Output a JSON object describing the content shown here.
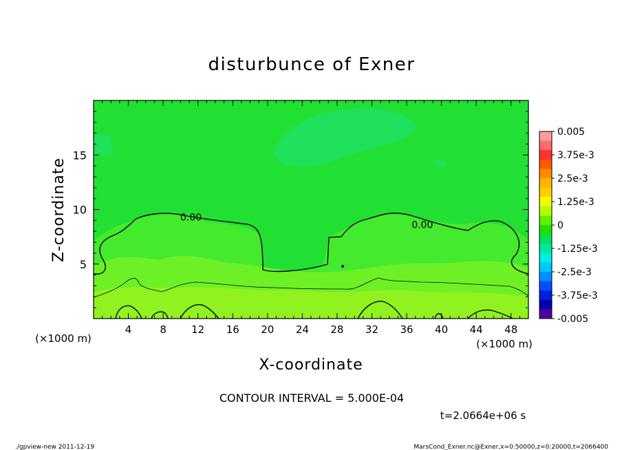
{
  "chart_data": {
    "type": "heatmap",
    "title": "disturbunce of Exner",
    "xlabel": "X-coordinate",
    "ylabel": "Z-coordinate",
    "x_unit": "(×1000 m)",
    "y_unit": "(×1000 m)",
    "xlim": [
      0,
      50
    ],
    "ylim": [
      0,
      20
    ],
    "x_ticks": [
      "4",
      "8",
      "12",
      "16",
      "20",
      "24",
      "28",
      "32",
      "36",
      "40",
      "44",
      "48"
    ],
    "y_ticks": [
      "5",
      "10",
      "15"
    ],
    "colorbar": {
      "labels": [
        "0.005",
        "3.75e-3",
        "2.5e-3",
        "1.25e-3",
        "0",
        "-1.25e-3",
        "-2.5e-3",
        "-3.75e-3",
        "-0.005"
      ],
      "levels": [
        0.005,
        0.00375,
        0.0025,
        0.00125,
        0,
        -0.00125,
        -0.0025,
        -0.00375,
        -0.005
      ],
      "colors": [
        "#ff9a9a",
        "#ff6a6a",
        "#ff3030",
        "#ff5a00",
        "#ff8c00",
        "#ffb400",
        "#ffd000",
        "#f0ff00",
        "#b4ff00",
        "#60f000",
        "#20e000",
        "#00e060",
        "#00e8a0",
        "#00f0e0",
        "#00c8ff",
        "#0090ff",
        "#0050ff",
        "#0020e0",
        "#0000b0",
        "#5000a0"
      ]
    },
    "contour_labels": [
      {
        "text": "0.00",
        "x": 11.2,
        "z": 9.3
      },
      {
        "text": "0.00",
        "x": 37.8,
        "z": 8.6
      }
    ],
    "contour_interval_label": "CONTOUR INTERVAL = 5.000E-04",
    "time_label": "t=2.0664e+06 s"
  },
  "footer": {
    "left": "./gpview-new   2011-12-19",
    "right": "MarsCond_Exner.nc@Exner,x=0:50000,z=0:20000,t=2066400"
  },
  "colors": {
    "background_field": "#22e033",
    "upper_field": "#1ee05a",
    "low_layer_1": "#44ea2e",
    "low_layer_2": "#6ef026",
    "low_layer_3": "#90f21e"
  }
}
